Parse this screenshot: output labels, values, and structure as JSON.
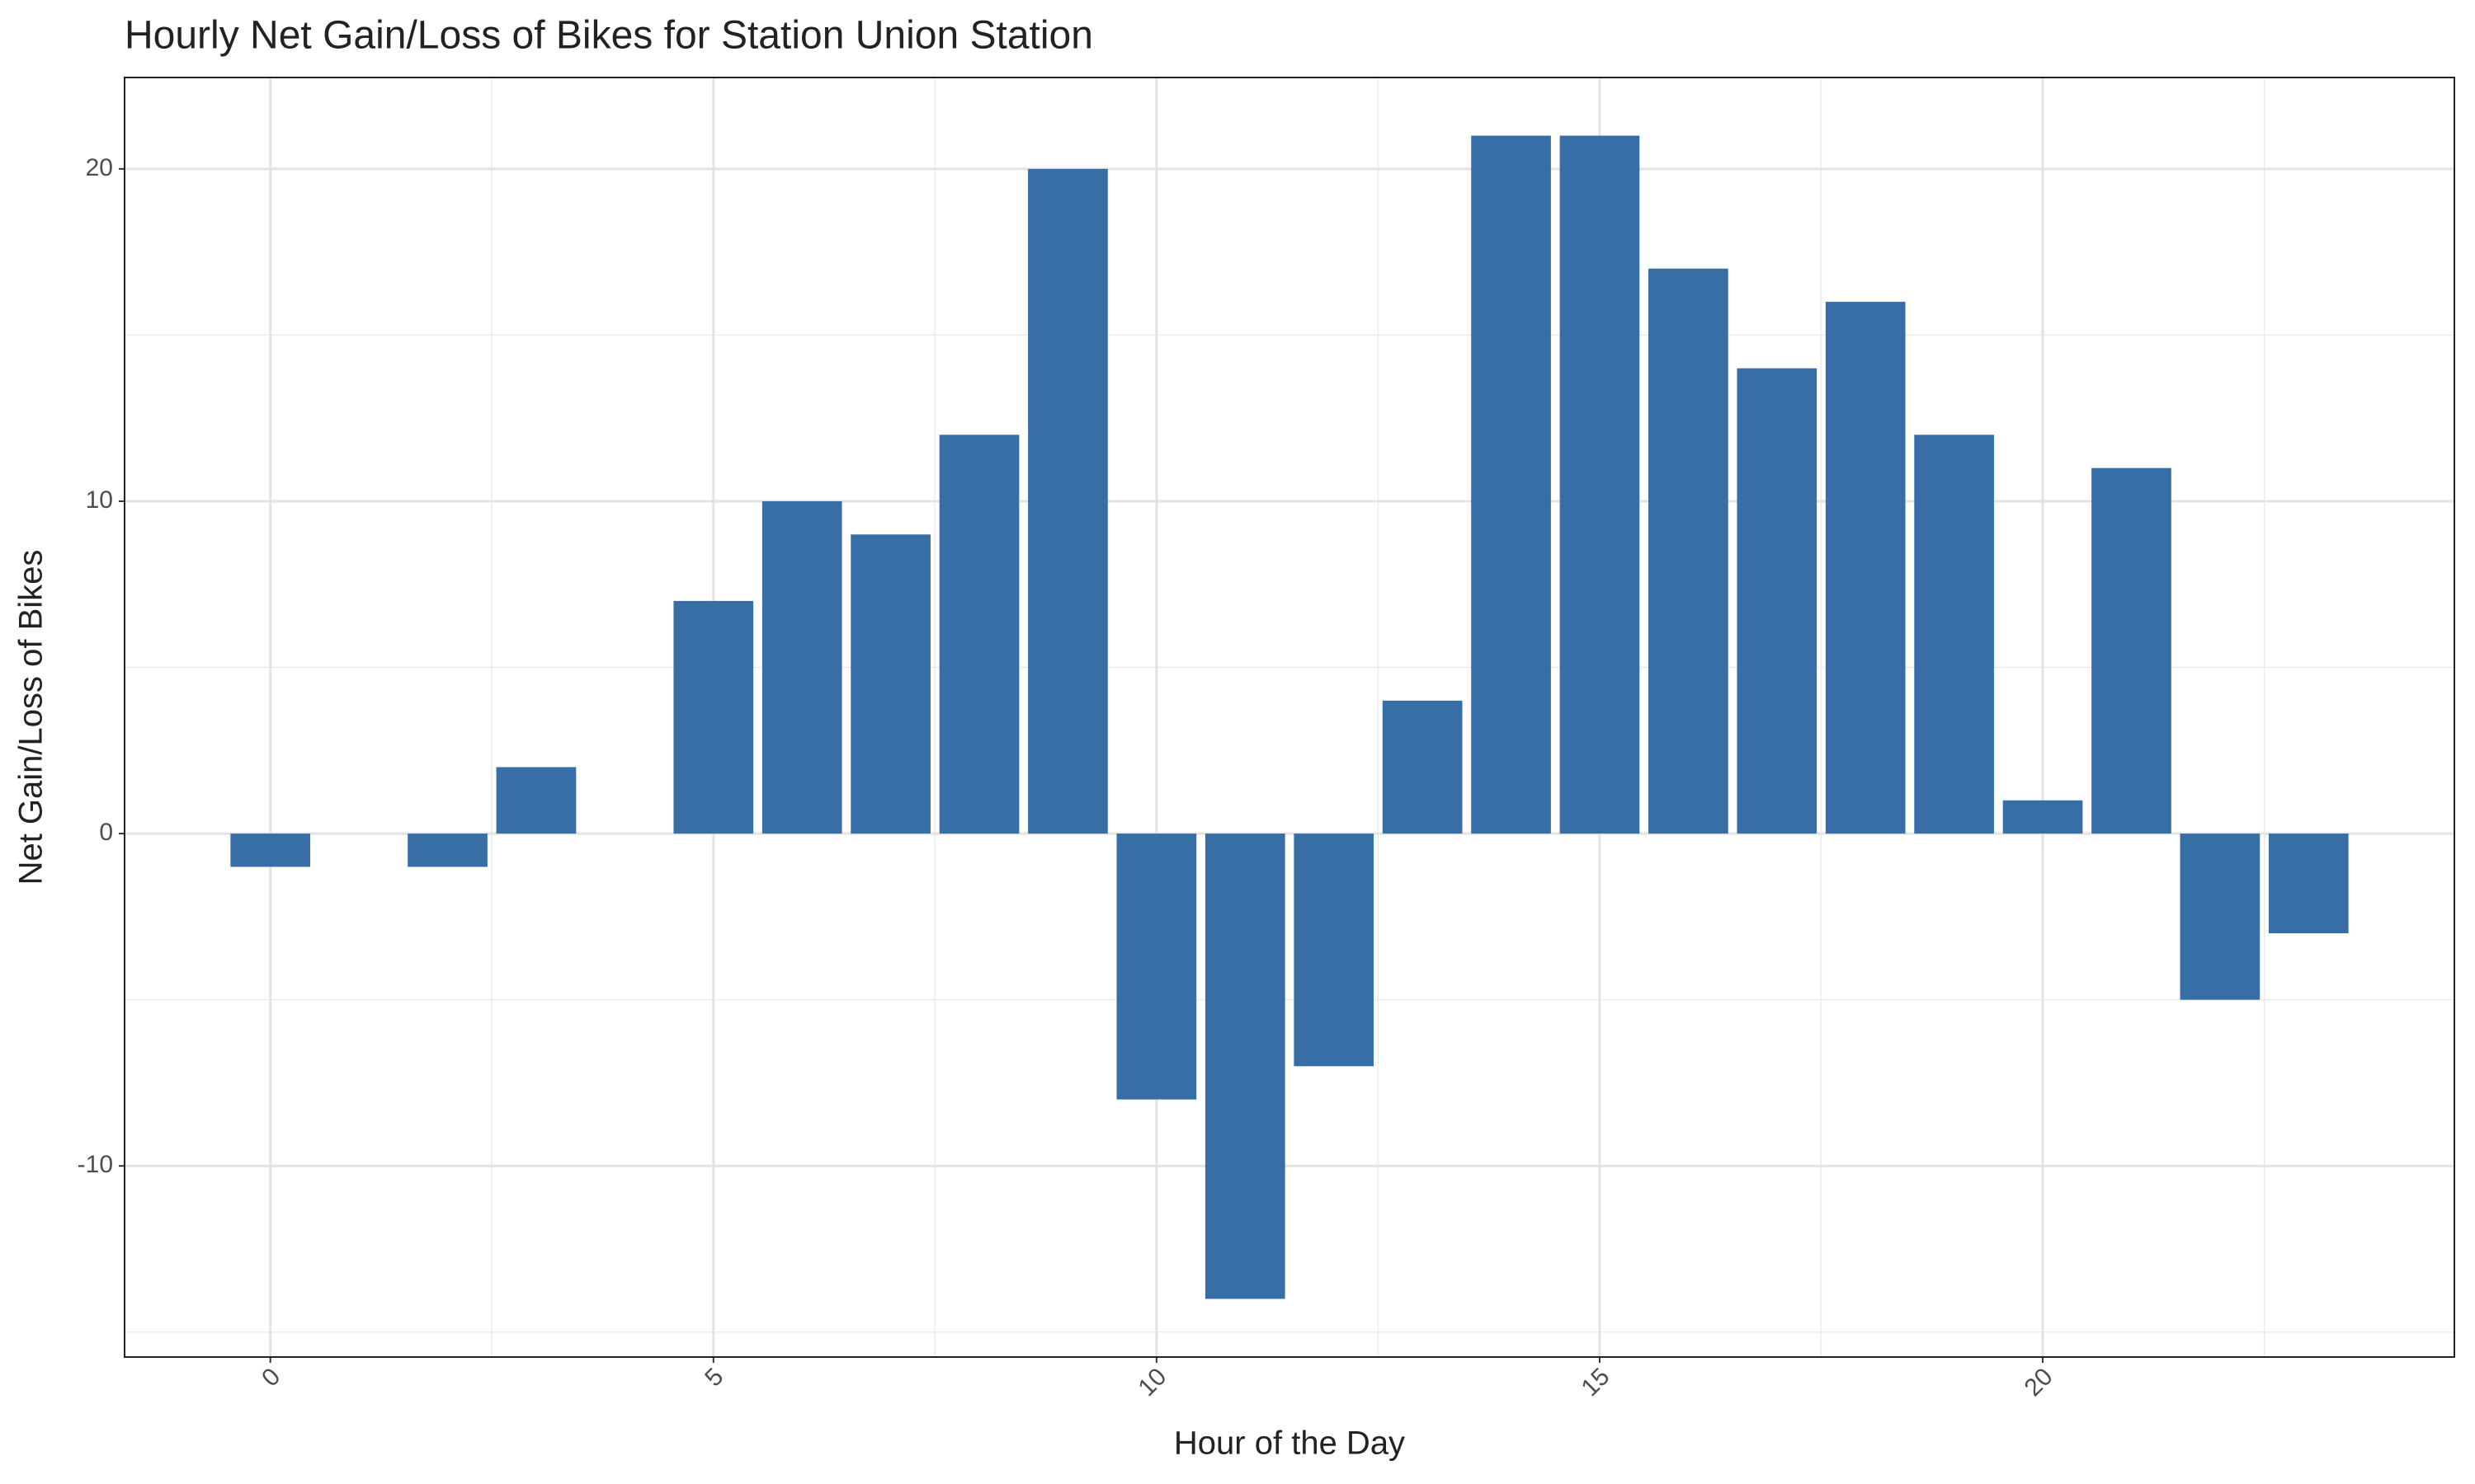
{
  "chart_data": {
    "type": "bar",
    "title": "Hourly Net Gain/Loss of Bikes for Station Union Station",
    "x_label": "Hour of the Day",
    "y_label": "Net Gain/Loss of Bikes",
    "x": [
      0,
      2,
      3,
      5,
      6,
      7,
      8,
      9,
      10,
      11,
      12,
      13,
      14,
      15,
      16,
      17,
      18,
      19,
      20,
      21,
      22,
      23
    ],
    "values": [
      -1,
      -1,
      2,
      7,
      10,
      9,
      12,
      20,
      -8,
      -14,
      -7,
      4,
      21,
      21,
      17,
      14,
      16,
      12,
      1,
      11,
      -5,
      -3
    ],
    "color": "#386ea6",
    "xlim": [
      -1.645,
      24.645
    ],
    "xticks": [
      0,
      5,
      10,
      15,
      20
    ],
    "ylim": [
      -15.75,
      22.75
    ],
    "yticks": [
      -10,
      0,
      10,
      20
    ],
    "grid": true
  }
}
